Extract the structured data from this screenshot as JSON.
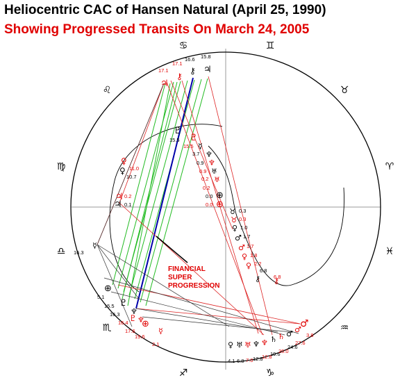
{
  "title": "Heliocentric CAC of Hansen Natural (April 25, 1990)",
  "subtitle": "Showing Progressed Transits On March 24, 2005",
  "annotation": [
    "FINANCIAL",
    "SUPER",
    "PROGRESSION"
  ],
  "colors": {
    "natal": "#000000",
    "transit": "#e00000",
    "green": "#22bb22",
    "blue": "#0000aa"
  },
  "zodiac": [
    {
      "sign": "Cancer",
      "glyph": "♋"
    },
    {
      "sign": "Gemini",
      "glyph": "♊"
    },
    {
      "sign": "Taurus",
      "glyph": "♉"
    },
    {
      "sign": "Aries",
      "glyph": "♈"
    },
    {
      "sign": "Pisces",
      "glyph": "♓"
    },
    {
      "sign": "Aquarius",
      "glyph": "♒"
    },
    {
      "sign": "Capricorn",
      "glyph": "♑"
    },
    {
      "sign": "Sagittarius",
      "glyph": "♐"
    },
    {
      "sign": "Scorpio",
      "glyph": "♏"
    },
    {
      "sign": "Libra",
      "glyph": "♎"
    },
    {
      "sign": "Virgo",
      "glyph": "♍"
    },
    {
      "sign": "Leo",
      "glyph": "♌"
    }
  ],
  "top_cluster": [
    {
      "label": "17.1",
      "kind": "transit",
      "glyph": "♃"
    },
    {
      "label": "17.1",
      "kind": "transit",
      "glyph": "⚷"
    },
    {
      "label": "16.6",
      "kind": "natal",
      "glyph": "⚷"
    },
    {
      "label": "15.8",
      "kind": "natal",
      "glyph": "♃"
    }
  ],
  "inner_chain": [
    {
      "label": "15.5",
      "kind": "natal",
      "glyph": "♇"
    },
    {
      "label": "15.5",
      "kind": "transit",
      "glyph": "♇"
    },
    {
      "label": "3.7",
      "kind": "natal",
      "glyph": "☿"
    },
    {
      "label": "0.9",
      "kind": "natal",
      "glyph": "♆"
    },
    {
      "label": "0.9",
      "kind": "transit",
      "glyph": "♆"
    },
    {
      "label": "0.2",
      "kind": "natal",
      "glyph": "♅"
    },
    {
      "label": "0.2",
      "kind": "transit",
      "glyph": "♅"
    },
    {
      "label": "0.0",
      "kind": "natal",
      "glyph": "⊕"
    },
    {
      "label": "0.0",
      "kind": "transit",
      "glyph": "⊕"
    }
  ],
  "left_cluster": [
    {
      "label": "11.0",
      "kind": "transit",
      "glyph": "♀"
    },
    {
      "label": "10.7",
      "kind": "natal",
      "glyph": "♀"
    },
    {
      "label": "0.2",
      "kind": "transit",
      "glyph": "♃"
    },
    {
      "label": "0.1",
      "kind": "natal",
      "glyph": "♃"
    }
  ],
  "right_chain": [
    {
      "label": "0.3",
      "kind": "natal",
      "glyph": "♉"
    },
    {
      "label": "0.3",
      "kind": "transit",
      "glyph": "♉"
    },
    {
      "label": "1.0",
      "kind": "natal",
      "glyph": "♀"
    },
    {
      "label": "1.7",
      "kind": "natal",
      "glyph": "♂"
    },
    {
      "label": "1.7",
      "kind": "transit",
      "glyph": "♂"
    },
    {
      "label": "1.8",
      "kind": "transit",
      "glyph": "♀"
    },
    {
      "label": "2.2",
      "kind": "transit",
      "glyph": "♀"
    },
    {
      "label": "6.8",
      "kind": "natal",
      "glyph": "⚷"
    },
    {
      "label": "6.8",
      "kind": "transit",
      "glyph": "⚷"
    }
  ],
  "libra_point": {
    "label": "16.3",
    "glyph": "☿"
  },
  "lower_left_cluster": [
    {
      "label": "5.1",
      "kind": "natal",
      "glyph": "⊕"
    },
    {
      "label": "15.5",
      "kind": "natal",
      "glyph": "♇"
    },
    {
      "label": "16.3",
      "kind": "natal",
      "glyph": "♆"
    },
    {
      "label": "16.4",
      "kind": "transit",
      "glyph": "♇"
    },
    {
      "label": "17.6",
      "kind": "transit",
      "glyph": "♆"
    },
    {
      "label": "19.6",
      "kind": "transit",
      "glyph": "⊕"
    },
    {
      "label": "2.1",
      "kind": "transit",
      "glyph": "☿"
    }
  ],
  "bottom_cluster": [
    {
      "label": "4.1",
      "kind": "natal",
      "glyph": "♀"
    },
    {
      "label": "6.8",
      "kind": "natal",
      "glyph": "♅"
    },
    {
      "label": "7.0",
      "kind": "transit",
      "glyph": "♅"
    },
    {
      "label": "12.8",
      "kind": "natal",
      "glyph": "♆"
    },
    {
      "label": "12.8",
      "kind": "transit",
      "glyph": "♆"
    },
    {
      "label": "19.6",
      "kind": "natal",
      "glyph": "♄"
    },
    {
      "label": "20.0",
      "kind": "transit",
      "glyph": "♄"
    },
    {
      "label": "24.6",
      "kind": "natal",
      "glyph": "♂"
    },
    {
      "label": "27.6",
      "kind": "transit",
      "glyph": "♂"
    },
    {
      "label": "3.8",
      "kind": "transit",
      "glyph": "♂"
    }
  ]
}
